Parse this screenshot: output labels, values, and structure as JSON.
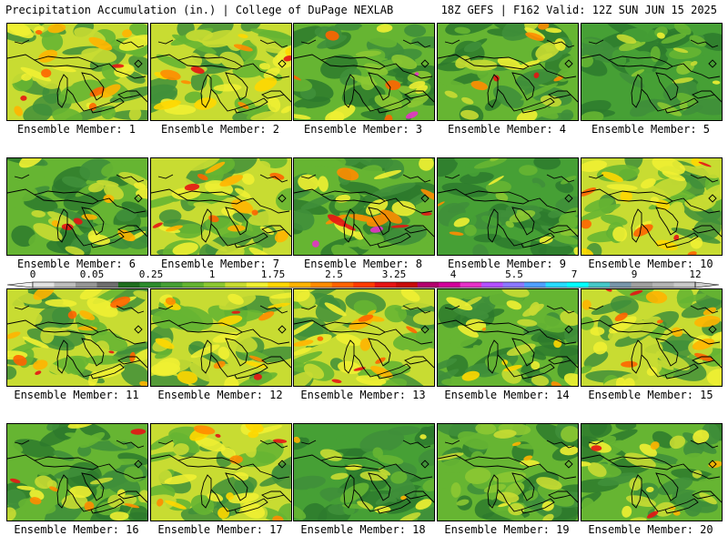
{
  "header": {
    "left": "Precipitation Accumulation (in.) | College of DuPage NEXLAB",
    "right": "18Z GEFS | F162 Valid: 12Z SUN JUN 15 2025"
  },
  "legend": {
    "tick_labels": [
      "0",
      "0.05",
      "0.25",
      "1",
      "1.75",
      "2.5",
      "3.25",
      "4",
      "5.5",
      "7",
      "9",
      "12"
    ],
    "colors": [
      "#e1e1e1",
      "#bdbdbd",
      "#969696",
      "#6e6e6e",
      "#1e6e1e",
      "#2d8c2d",
      "#46a035",
      "#64b432",
      "#8cc832",
      "#c8dc32",
      "#f0f032",
      "#ffd700",
      "#ffb400",
      "#ff8c00",
      "#ff6400",
      "#ff3c00",
      "#e61414",
      "#c80a0a",
      "#b4006e",
      "#d2009b",
      "#e632c8",
      "#b450ff",
      "#8c78ff",
      "#50a0ff",
      "#28dcff",
      "#00ffff",
      "#46c8c8",
      "#7896aa",
      "#a0a0a0",
      "#b4b4b4",
      "#c8c8c8"
    ]
  },
  "members": [
    {
      "label": "Ensemble Member: 1",
      "palette": [
        "#3f8f3a",
        "#66b532",
        "#c8dc32",
        "#f0f032",
        "#ffb400",
        "#ff6400",
        "#e61414"
      ]
    },
    {
      "label": "Ensemble Member: 2",
      "palette": [
        "#3f8f3a",
        "#66b532",
        "#c8dc32",
        "#f0f032",
        "#ffd700",
        "#ff8c00",
        "#e61414"
      ]
    },
    {
      "label": "Ensemble Member: 3",
      "palette": [
        "#2d7a2d",
        "#3f8f3a",
        "#66b532",
        "#8cc832",
        "#f0f032",
        "#ff6400",
        "#e632c8"
      ]
    },
    {
      "label": "Ensemble Member: 4",
      "palette": [
        "#2d7a2d",
        "#3f8f3a",
        "#66b532",
        "#c8dc32",
        "#f0f032",
        "#ff8c00",
        "#e61414"
      ]
    },
    {
      "label": "Ensemble Member: 5",
      "palette": [
        "#2d7a2d",
        "#3f8f3a",
        "#46a035",
        "#66b532",
        "#8cc832",
        "#c8dc32",
        "#f0f032"
      ]
    },
    {
      "label": "Ensemble Member: 6",
      "palette": [
        "#2d7a2d",
        "#3f8f3a",
        "#66b532",
        "#c8dc32",
        "#f0f032",
        "#ffb400",
        "#e61414"
      ]
    },
    {
      "label": "Ensemble Member: 7",
      "palette": [
        "#3f8f3a",
        "#66b532",
        "#c8dc32",
        "#f0f032",
        "#ffb400",
        "#ff6400",
        "#e61414"
      ]
    },
    {
      "label": "Ensemble Member: 8",
      "palette": [
        "#2d7a2d",
        "#3f8f3a",
        "#66b532",
        "#f0f032",
        "#ff8c00",
        "#e61414",
        "#e632c8"
      ]
    },
    {
      "label": "Ensemble Member: 9",
      "palette": [
        "#2d7a2d",
        "#3f8f3a",
        "#46a035",
        "#66b532",
        "#8cc832",
        "#f0f032",
        "#ff8c00"
      ]
    },
    {
      "label": "Ensemble Member: 10",
      "palette": [
        "#3f8f3a",
        "#66b532",
        "#c8dc32",
        "#f0f032",
        "#ffd700",
        "#ff6400",
        "#e61414"
      ]
    },
    {
      "label": "Ensemble Member: 11",
      "palette": [
        "#3f8f3a",
        "#66b532",
        "#c8dc32",
        "#f0f032",
        "#ffb400",
        "#ff6400",
        "#e61414"
      ]
    },
    {
      "label": "Ensemble Member: 12",
      "palette": [
        "#3f8f3a",
        "#66b532",
        "#c8dc32",
        "#f0f032",
        "#ffd700",
        "#ff8c00",
        "#e61414"
      ]
    },
    {
      "label": "Ensemble Member: 13",
      "palette": [
        "#3f8f3a",
        "#66b532",
        "#c8dc32",
        "#f0f032",
        "#ffb400",
        "#ff6400",
        "#e61414"
      ]
    },
    {
      "label": "Ensemble Member: 14",
      "palette": [
        "#2d7a2d",
        "#3f8f3a",
        "#66b532",
        "#c8dc32",
        "#f0f032",
        "#ffd700",
        "#ff8c00"
      ]
    },
    {
      "label": "Ensemble Member: 15",
      "palette": [
        "#3f8f3a",
        "#66b532",
        "#c8dc32",
        "#f0f032",
        "#ffb400",
        "#ff6400",
        "#e61414"
      ]
    },
    {
      "label": "Ensemble Member: 16",
      "palette": [
        "#2d7a2d",
        "#3f8f3a",
        "#66b532",
        "#c8dc32",
        "#f0f032",
        "#ff8c00",
        "#e61414"
      ]
    },
    {
      "label": "Ensemble Member: 17",
      "palette": [
        "#3f8f3a",
        "#66b532",
        "#c8dc32",
        "#f0f032",
        "#ffd700",
        "#ff8c00",
        "#e61414"
      ]
    },
    {
      "label": "Ensemble Member: 18",
      "palette": [
        "#2d7a2d",
        "#3f8f3a",
        "#46a035",
        "#66b532",
        "#c8dc32",
        "#f0f032",
        "#ffb400"
      ]
    },
    {
      "label": "Ensemble Member: 19",
      "palette": [
        "#2d7a2d",
        "#3f8f3a",
        "#66b532",
        "#8cc832",
        "#c8dc32",
        "#f0f032",
        "#ffb400"
      ]
    },
    {
      "label": "Ensemble Member: 20",
      "palette": [
        "#2d7a2d",
        "#3f8f3a",
        "#66b532",
        "#c8dc32",
        "#f0f032",
        "#ffb400",
        "#e61414"
      ]
    }
  ]
}
